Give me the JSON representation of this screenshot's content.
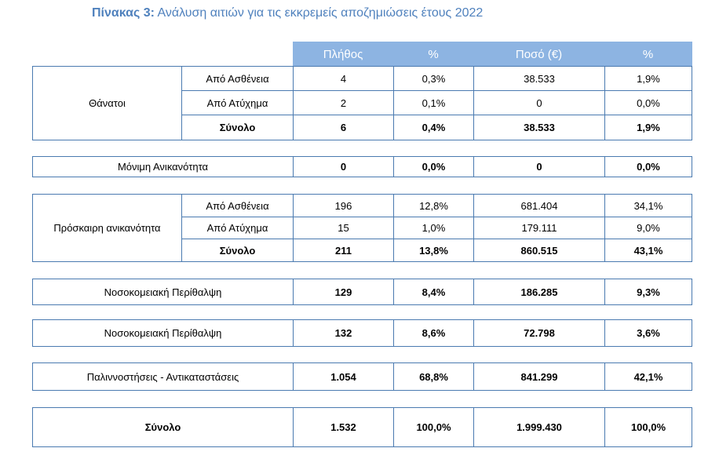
{
  "title": {
    "label": "Πίνακας 3:",
    "text": "Ανάλυση αιτιών για τις εκκρεμείς αποζημιώσεις έτους 2022"
  },
  "headers": [
    "Πλήθος",
    "%",
    "Ποσό (€)",
    "%"
  ],
  "deaths": {
    "label": "Θάνατοι",
    "rows": [
      {
        "sub": "Από Ασθένεια",
        "count": "4",
        "pct": "0,3%",
        "amount": "38.533",
        "pct2": "1,9%"
      },
      {
        "sub": "Από Ατύχημα",
        "count": "2",
        "pct": "0,1%",
        "amount": "0",
        "pct2": "0,0%"
      },
      {
        "sub": "Σύνολο",
        "count": "6",
        "pct": "0,4%",
        "amount": "38.533",
        "pct2": "1,9%"
      }
    ]
  },
  "permanent": {
    "label": "Μόνιμη  Ανικανότητα",
    "count": "0",
    "pct": "0,0%",
    "amount": "0",
    "pct2": "0,0%"
  },
  "temporary": {
    "label": "Πρόσκαιρη ανικανότητα",
    "rows": [
      {
        "sub": "Από Ασθένεια",
        "count": "196",
        "pct": "12,8%",
        "amount": "681.404",
        "pct2": "34,1%"
      },
      {
        "sub": "Από Ατύχημα",
        "count": "15",
        "pct": "1,0%",
        "amount": "179.111",
        "pct2": "9,0%"
      },
      {
        "sub": "Σύνολο",
        "count": "211",
        "pct": "13,8%",
        "amount": "860.515",
        "pct2": "43,1%"
      }
    ]
  },
  "hospital1": {
    "label": "Νοσοκομειακή Περίθαλψη",
    "count": "129",
    "pct": "8,4%",
    "amount": "186.285",
    "pct2": "9,3%"
  },
  "hospital2": {
    "label": "Νοσοκομειακή Περίθαλψη",
    "count": "132",
    "pct": "8,6%",
    "amount": "72.798",
    "pct2": "3,6%"
  },
  "reimb": {
    "label": "Παλιννοστήσεις  -  Αντικαταστάσεις",
    "count": "1.054",
    "pct": "68,8%",
    "amount": "841.299",
    "pct2": "42,1%"
  },
  "total": {
    "label": "Σύνολο",
    "count": "1.532",
    "pct": "100,0%",
    "amount": "1.999.430",
    "pct2": "100,0%"
  }
}
